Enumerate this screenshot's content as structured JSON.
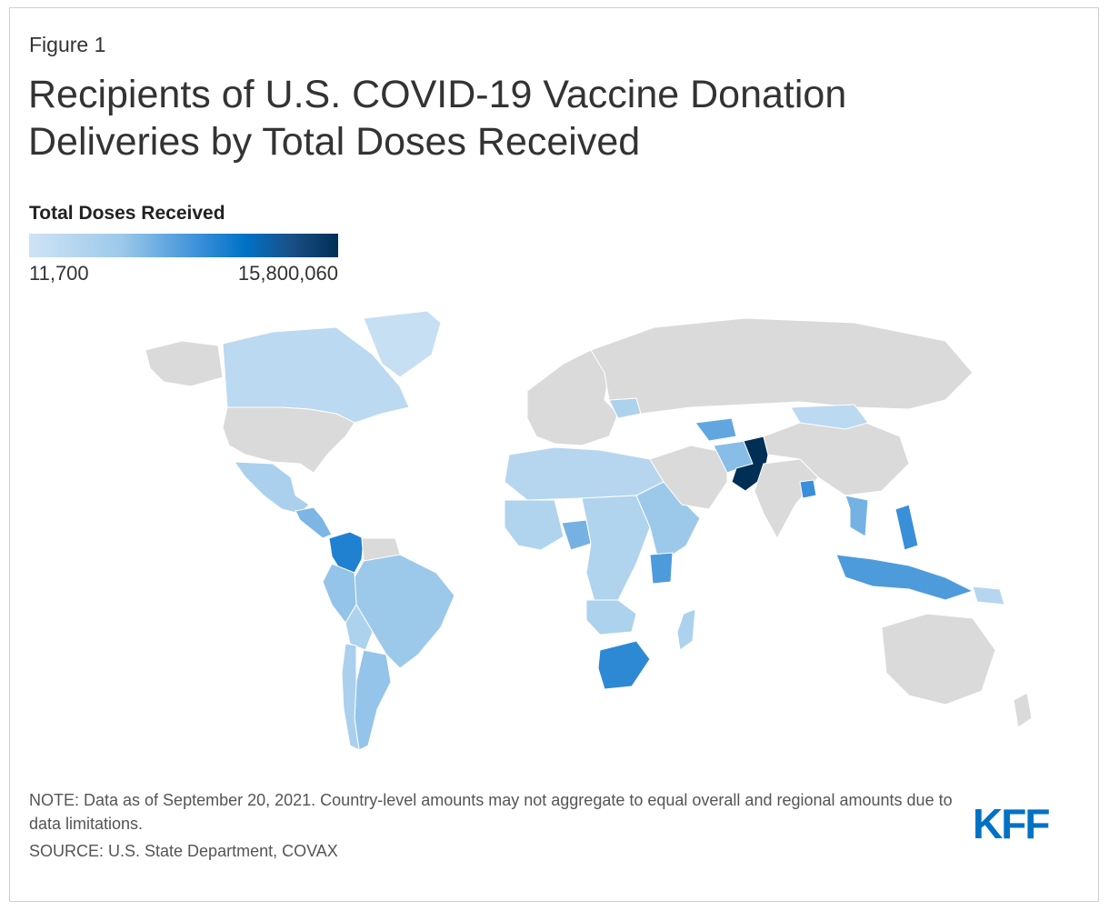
{
  "figure_label": "Figure 1",
  "title": "Recipients of U.S. COVID-19 Vaccine Donation Deliveries by Total Doses Received",
  "legend": {
    "title": "Total Doses Received",
    "min_label": "11,700",
    "max_label": "15,800,060",
    "colors": [
      "#cfe3f5",
      "#9cc9ea",
      "#3a8fd9",
      "#0072c6",
      "#1a4f86",
      "#002f56"
    ]
  },
  "map": {
    "no_data_color": "#dadada",
    "regions": [
      {
        "name": "canada",
        "shade": 0.12
      },
      {
        "name": "greenland",
        "shade": 0.05
      },
      {
        "name": "usa",
        "shade": null
      },
      {
        "name": "mexico",
        "shade": 0.22
      },
      {
        "name": "central-america",
        "shade": 0.38
      },
      {
        "name": "colombia",
        "shade": 0.62
      },
      {
        "name": "venezuela",
        "shade": null
      },
      {
        "name": "brazil",
        "shade": 0.3
      },
      {
        "name": "peru",
        "shade": 0.32
      },
      {
        "name": "bolivia",
        "shade": 0.2
      },
      {
        "name": "argentina",
        "shade": 0.32
      },
      {
        "name": "chile",
        "shade": 0.22
      },
      {
        "name": "russia",
        "shade": null
      },
      {
        "name": "europe",
        "shade": null
      },
      {
        "name": "ukraine",
        "shade": 0.2
      },
      {
        "name": "north-africa",
        "shade": 0.15
      },
      {
        "name": "west-africa",
        "shade": 0.18
      },
      {
        "name": "nigeria",
        "shade": 0.4
      },
      {
        "name": "central-africa",
        "shade": 0.18
      },
      {
        "name": "east-africa",
        "shade": 0.3
      },
      {
        "name": "kenya",
        "shade": 0.5
      },
      {
        "name": "angola",
        "shade": 0.2
      },
      {
        "name": "south-africa",
        "shade": 0.58
      },
      {
        "name": "madagascar",
        "shade": 0.2
      },
      {
        "name": "middle-east",
        "shade": null
      },
      {
        "name": "uzbekistan",
        "shade": 0.45
      },
      {
        "name": "afghanistan",
        "shade": 0.35
      },
      {
        "name": "pakistan",
        "shade": 1.0
      },
      {
        "name": "india",
        "shade": null
      },
      {
        "name": "bangladesh",
        "shade": 0.55
      },
      {
        "name": "china",
        "shade": null
      },
      {
        "name": "mongolia",
        "shade": 0.12
      },
      {
        "name": "vietnam",
        "shade": 0.4
      },
      {
        "name": "philippines",
        "shade": 0.55
      },
      {
        "name": "indonesia",
        "shade": 0.5
      },
      {
        "name": "papua-new-guinea",
        "shade": 0.15
      },
      {
        "name": "australia",
        "shade": null
      },
      {
        "name": "new-zealand",
        "shade": null
      }
    ]
  },
  "note": "NOTE: Data as of September 20, 2021. Country-level amounts may not aggregate to equal overall and regional amounts due to data limitations.",
  "source": "SOURCE: U.S. State Department, COVAX",
  "logo_text": "KFF",
  "logo_color": "#0072c6"
}
